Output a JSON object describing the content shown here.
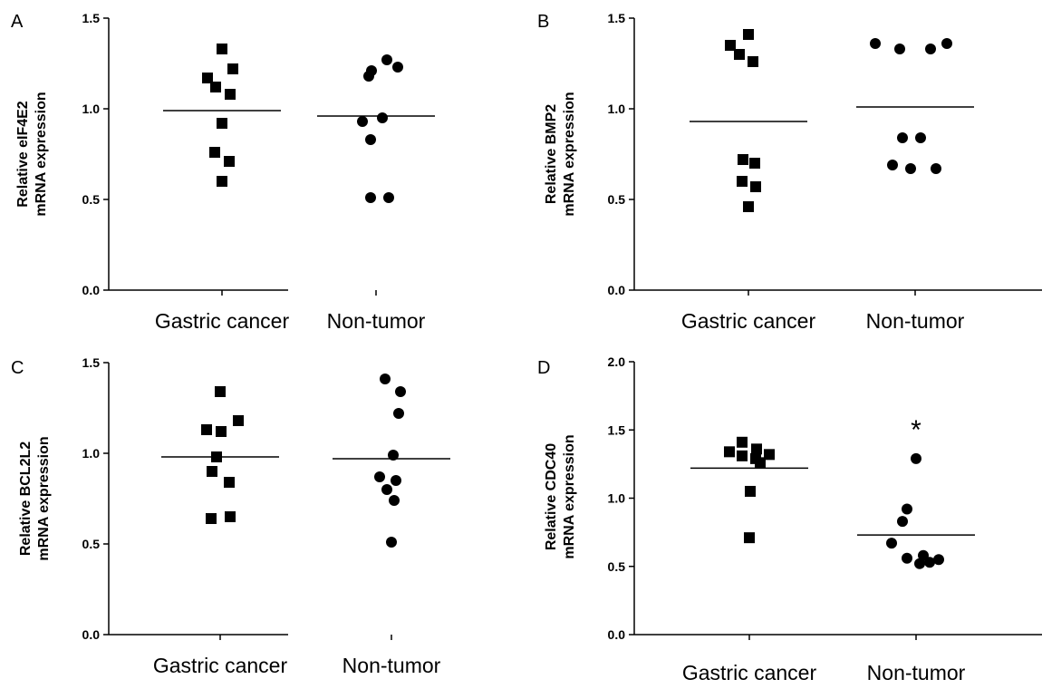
{
  "chart_data": [
    {
      "panel_label": "A",
      "type": "scatter",
      "ylabel_lines": [
        "Relative eIF4E2",
        "mRNA expression"
      ],
      "ylim": [
        0,
        1.5
      ],
      "yticks": [
        "0.0",
        "0.5",
        "1.0",
        "1.5"
      ],
      "categories": [
        "Gastric cancer",
        "Non-tumor"
      ],
      "series": [
        {
          "marker": "square",
          "values": [
            1.33,
            1.22,
            1.17,
            1.12,
            1.08,
            0.92,
            0.76,
            0.71,
            0.6
          ],
          "mean": 0.99
        },
        {
          "marker": "circle",
          "values": [
            1.27,
            1.23,
            1.21,
            1.18,
            0.95,
            0.93,
            0.83,
            0.51,
            0.51
          ],
          "mean": 0.96
        }
      ]
    },
    {
      "panel_label": "B",
      "type": "scatter",
      "ylabel_lines": [
        "Relative BMP2",
        "mRNA expression"
      ],
      "ylim": [
        0,
        1.5
      ],
      "yticks": [
        "0.0",
        "0.5",
        "1.0",
        "1.5"
      ],
      "categories": [
        "Gastric cancer",
        "Non-tumor"
      ],
      "series": [
        {
          "marker": "square",
          "values": [
            1.41,
            1.35,
            1.3,
            1.26,
            0.72,
            0.7,
            0.6,
            0.57,
            0.46
          ],
          "mean": 0.93
        },
        {
          "marker": "circle",
          "values": [
            1.36,
            1.36,
            1.33,
            1.33,
            0.84,
            0.84,
            0.69,
            0.67,
            0.67
          ],
          "mean": 1.01
        }
      ]
    },
    {
      "panel_label": "C",
      "type": "scatter",
      "ylabel_lines": [
        "Relative BCL2L2",
        "mRNA expression"
      ],
      "ylim": [
        0,
        1.5
      ],
      "yticks": [
        "0.0",
        "0.5",
        "1.0",
        "1.5"
      ],
      "categories": [
        "Gastric cancer",
        "Non-tumor"
      ],
      "series": [
        {
          "marker": "square",
          "values": [
            1.34,
            1.18,
            1.13,
            1.12,
            0.98,
            0.9,
            0.84,
            0.65,
            0.64
          ],
          "mean": 0.98
        },
        {
          "marker": "circle",
          "values": [
            1.41,
            1.34,
            1.22,
            0.99,
            0.87,
            0.85,
            0.8,
            0.74,
            0.51
          ],
          "mean": 0.97
        }
      ]
    },
    {
      "panel_label": "D",
      "type": "scatter",
      "ylabel_lines": [
        "Relative CDC40",
        "mRNA expression"
      ],
      "ylim": [
        0,
        2.0
      ],
      "yticks": [
        "0.0",
        "0.5",
        "1.0",
        "1.5",
        "2.0"
      ],
      "categories": [
        "Gastric cancer",
        "Non-tumor"
      ],
      "annotation": "*",
      "series": [
        {
          "marker": "square",
          "values": [
            1.41,
            1.36,
            1.34,
            1.32,
            1.31,
            1.29,
            1.26,
            1.05,
            0.71
          ],
          "mean": 1.22
        },
        {
          "marker": "circle",
          "values": [
            1.29,
            0.92,
            0.83,
            0.67,
            0.58,
            0.56,
            0.55,
            0.53,
            0.52
          ],
          "mean": 0.73
        }
      ]
    }
  ]
}
